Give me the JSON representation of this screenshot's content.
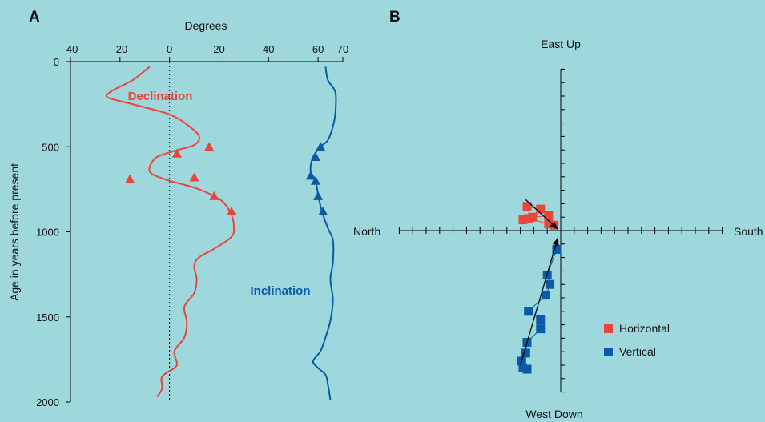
{
  "colors": {
    "background": "#9fd8dc",
    "declination": "#e8463c",
    "inclination": "#0a5aa8",
    "horizontal": "#e8463c",
    "vertical": "#0a5aa8"
  },
  "chart_data": [
    {
      "panel": "A",
      "type": "line",
      "xlabel": "Degrees",
      "ylabel": "Age in years before present",
      "xlim": [
        -40,
        70
      ],
      "ylim": [
        2000,
        0
      ],
      "xticks": [
        -40,
        -20,
        0,
        20,
        40,
        60,
        70
      ],
      "yticks": [
        0,
        500,
        1000,
        1500,
        2000
      ],
      "reference_line_x": 0,
      "series": [
        {
          "name": "Declination",
          "curve": [
            [
              -8,
              30
            ],
            [
              -15,
              110
            ],
            [
              -23,
              170
            ],
            [
              -25,
              210
            ],
            [
              -15,
              250
            ],
            [
              0,
              310
            ],
            [
              8,
              380
            ],
            [
              12,
              440
            ],
            [
              10,
              490
            ],
            [
              3,
              520
            ],
            [
              -5,
              560
            ],
            [
              -8,
              620
            ],
            [
              -7,
              660
            ],
            [
              0,
              700
            ],
            [
              10,
              740
            ],
            [
              18,
              790
            ],
            [
              22,
              830
            ],
            [
              25,
              900
            ],
            [
              26,
              970
            ],
            [
              25,
              1030
            ],
            [
              18,
              1100
            ],
            [
              12,
              1150
            ],
            [
              10,
              1200
            ],
            [
              11,
              1280
            ],
            [
              10,
              1360
            ],
            [
              6,
              1440
            ],
            [
              7,
              1530
            ],
            [
              6,
              1620
            ],
            [
              2,
              1700
            ],
            [
              3,
              1770
            ],
            [
              2,
              1800
            ],
            [
              -3,
              1850
            ],
            [
              -3,
              1920
            ],
            [
              -5,
              1970
            ]
          ],
          "points": [
            [
              16,
              500
            ],
            [
              3,
              540
            ],
            [
              10,
              680
            ],
            [
              -16,
              690
            ],
            [
              18,
              790
            ],
            [
              25,
              880
            ]
          ]
        },
        {
          "name": "Inclination",
          "curve": [
            [
              63,
              30
            ],
            [
              64,
              110
            ],
            [
              67,
              180
            ],
            [
              67,
              300
            ],
            [
              66,
              380
            ],
            [
              64,
              460
            ],
            [
              61,
              500
            ],
            [
              58,
              560
            ],
            [
              57,
              640
            ],
            [
              59,
              700
            ],
            [
              60,
              780
            ],
            [
              61,
              850
            ],
            [
              62,
              900
            ],
            [
              64,
              980
            ],
            [
              66,
              1050
            ],
            [
              66,
              1180
            ],
            [
              65,
              1280
            ],
            [
              66,
              1400
            ],
            [
              65,
              1520
            ],
            [
              63,
              1620
            ],
            [
              61,
              1700
            ],
            [
              58,
              1760
            ],
            [
              60,
              1800
            ],
            [
              63,
              1840
            ],
            [
              64,
              1900
            ],
            [
              65,
              1990
            ]
          ],
          "points": [
            [
              61,
              500
            ],
            [
              59,
              560
            ],
            [
              57,
              670
            ],
            [
              59,
              700
            ],
            [
              60,
              790
            ],
            [
              62,
              880
            ]
          ]
        }
      ]
    },
    {
      "panel": "B",
      "type": "scatter",
      "axis_labels": {
        "top": "East Up",
        "bottom": "West Down",
        "left": "North",
        "right": "South"
      },
      "xlim": [
        -12,
        12
      ],
      "ylim": [
        -12,
        12
      ],
      "series": [
        {
          "name": "Horizontal",
          "points": [
            [
              -2.5,
              1.8
            ],
            [
              -1.5,
              1.6
            ],
            [
              -0.9,
              1.1
            ],
            [
              -2.1,
              1.0
            ],
            [
              -2.8,
              0.8
            ],
            [
              -2.4,
              0.9
            ],
            [
              -0.9,
              0.5
            ],
            [
              -0.5,
              0.4
            ]
          ],
          "vector": [
            [
              -2.6,
              2.3
            ],
            [
              -0.2,
              0.1
            ]
          ]
        },
        {
          "name": "Vertical",
          "points": [
            [
              -0.3,
              -1.4
            ],
            [
              -1.0,
              -3.3
            ],
            [
              -0.8,
              -4.0
            ],
            [
              -1.1,
              -4.8
            ],
            [
              -2.4,
              -6.0
            ],
            [
              -1.5,
              -6.6
            ],
            [
              -1.5,
              -7.3
            ],
            [
              -2.5,
              -8.3
            ],
            [
              -2.6,
              -9.1
            ],
            [
              -2.9,
              -9.7
            ],
            [
              -2.8,
              -10.2
            ],
            [
              -2.5,
              -10.3
            ]
          ],
          "vector": [
            [
              -3.0,
              -10.0
            ],
            [
              -0.2,
              -0.5
            ]
          ]
        }
      ]
    }
  ],
  "panels": {
    "a": {
      "label": "A",
      "xlabel": "Degrees",
      "ylabel": "Age in years before present",
      "declination_label": "Declination",
      "inclination_label": "Inclination"
    },
    "b": {
      "label": "B",
      "top": "East Up",
      "bottom": "West Down",
      "left": "North",
      "right": "South",
      "legend_horizontal": "Horizontal",
      "legend_vertical": "Vertical"
    }
  }
}
